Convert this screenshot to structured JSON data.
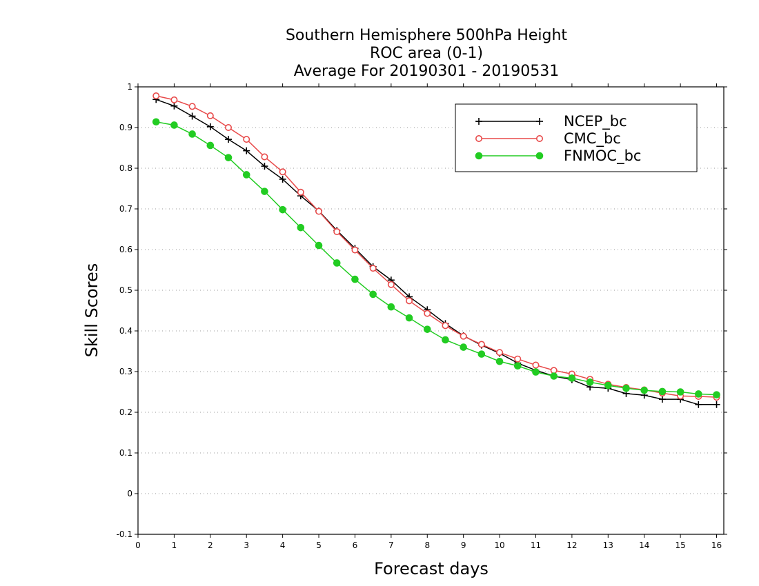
{
  "chart_data": {
    "type": "line",
    "title_lines": [
      "Southern Hemisphere 500hPa Height",
      "ROC area (0-1)",
      "Average For 20190301 - 20190531"
    ],
    "xlabel": "Forecast days",
    "ylabel": "Skill Scores",
    "xlim": [
      0,
      16.2
    ],
    "ylim": [
      -0.1,
      1
    ],
    "x_ticks": [
      0,
      1,
      2,
      3,
      4,
      5,
      6,
      7,
      8,
      9,
      10,
      11,
      12,
      13,
      14,
      15,
      16
    ],
    "y_ticks": [
      -0.1,
      0,
      0.1,
      0.2,
      0.3,
      0.4,
      0.5,
      0.6,
      0.7,
      0.8,
      0.9,
      1
    ],
    "y_tick_labels": [
      "-0.1",
      "0",
      "0.1",
      "0.2",
      "0.3",
      "0.4",
      "0.5",
      "0.6",
      "0.7",
      "0.8",
      "0.9",
      "1"
    ],
    "grid": "horizontal dotted",
    "legend_position": "top-right",
    "x": [
      0.5,
      1,
      1.5,
      2,
      2.5,
      3,
      3.5,
      4,
      4.5,
      5,
      5.5,
      6,
      6.5,
      7,
      7.5,
      8,
      8.5,
      9,
      9.5,
      10,
      10.5,
      11,
      11.5,
      12,
      12.5,
      13,
      13.5,
      14,
      14.5,
      15,
      15.5,
      16
    ],
    "series": [
      {
        "name": "NCEP_bc",
        "color": "#000000",
        "marker": "plus",
        "values": [
          0.969,
          0.953,
          0.928,
          0.902,
          0.871,
          0.843,
          0.805,
          0.773,
          0.732,
          0.695,
          0.647,
          0.603,
          0.558,
          0.525,
          0.484,
          0.452,
          0.418,
          0.388,
          0.365,
          0.345,
          0.321,
          0.303,
          0.289,
          0.28,
          0.262,
          0.259,
          0.246,
          0.242,
          0.232,
          0.232,
          0.219,
          0.219
        ]
      },
      {
        "name": "CMC_bc",
        "color": "#e84a4a",
        "marker": "open-circle",
        "values": [
          0.978,
          0.968,
          0.952,
          0.929,
          0.9,
          0.871,
          0.828,
          0.791,
          0.741,
          0.694,
          0.644,
          0.599,
          0.554,
          0.514,
          0.474,
          0.443,
          0.413,
          0.387,
          0.367,
          0.347,
          0.331,
          0.316,
          0.303,
          0.294,
          0.281,
          0.269,
          0.261,
          0.255,
          0.247,
          0.24,
          0.239,
          0.237
        ]
      },
      {
        "name": "FNMOC_bc",
        "color": "#22cc22",
        "marker": "filled-circle",
        "values": [
          0.914,
          0.906,
          0.884,
          0.856,
          0.826,
          0.784,
          0.743,
          0.698,
          0.654,
          0.61,
          0.567,
          0.527,
          0.49,
          0.459,
          0.432,
          0.404,
          0.378,
          0.36,
          0.343,
          0.325,
          0.314,
          0.299,
          0.289,
          0.284,
          0.274,
          0.266,
          0.259,
          0.254,
          0.251,
          0.25,
          0.245,
          0.243
        ]
      }
    ]
  }
}
